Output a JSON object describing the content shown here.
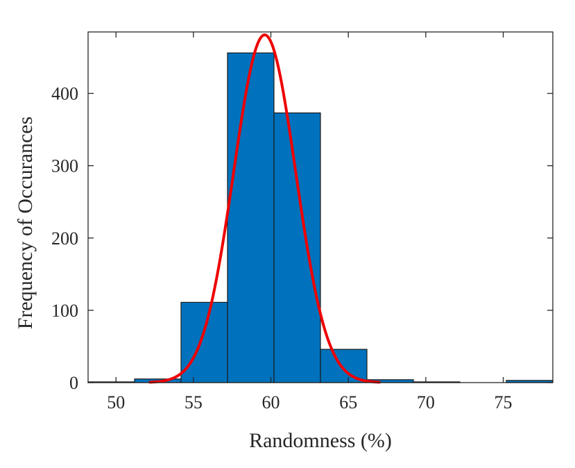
{
  "chart_data": {
    "type": "bar",
    "title": "",
    "xlabel": "Randomness (%)",
    "ylabel": "Frequency of Occurances",
    "xlim": [
      48.2,
      78.2
    ],
    "ylim": [
      0,
      485
    ],
    "xticks": [
      50,
      55,
      60,
      65,
      70,
      75
    ],
    "yticks": [
      0,
      100,
      200,
      300,
      400
    ],
    "grid": false,
    "box": true,
    "bins": [
      {
        "x0": 48.2,
        "x1": 51.2,
        "count": 1
      },
      {
        "x0": 51.2,
        "x1": 54.2,
        "count": 5
      },
      {
        "x0": 54.2,
        "x1": 57.2,
        "count": 111
      },
      {
        "x0": 57.2,
        "x1": 60.2,
        "count": 456
      },
      {
        "x0": 60.2,
        "x1": 63.2,
        "count": 373
      },
      {
        "x0": 63.2,
        "x1": 66.2,
        "count": 46
      },
      {
        "x0": 66.2,
        "x1": 69.2,
        "count": 4
      },
      {
        "x0": 69.2,
        "x1": 72.2,
        "count": 1
      },
      {
        "x0": 72.2,
        "x1": 75.2,
        "count": 0
      },
      {
        "x0": 75.2,
        "x1": 78.2,
        "count": 3
      }
    ],
    "fit_curve": {
      "type": "normal",
      "mean": 59.6,
      "sigma": 2.0,
      "peak": 481,
      "x_range": [
        52.2,
        67.0
      ]
    },
    "colors": {
      "bar_fill": "#0072BD",
      "bar_edge": "#1a1a1a",
      "curve": "#ee0000",
      "axes": "#262626"
    }
  }
}
